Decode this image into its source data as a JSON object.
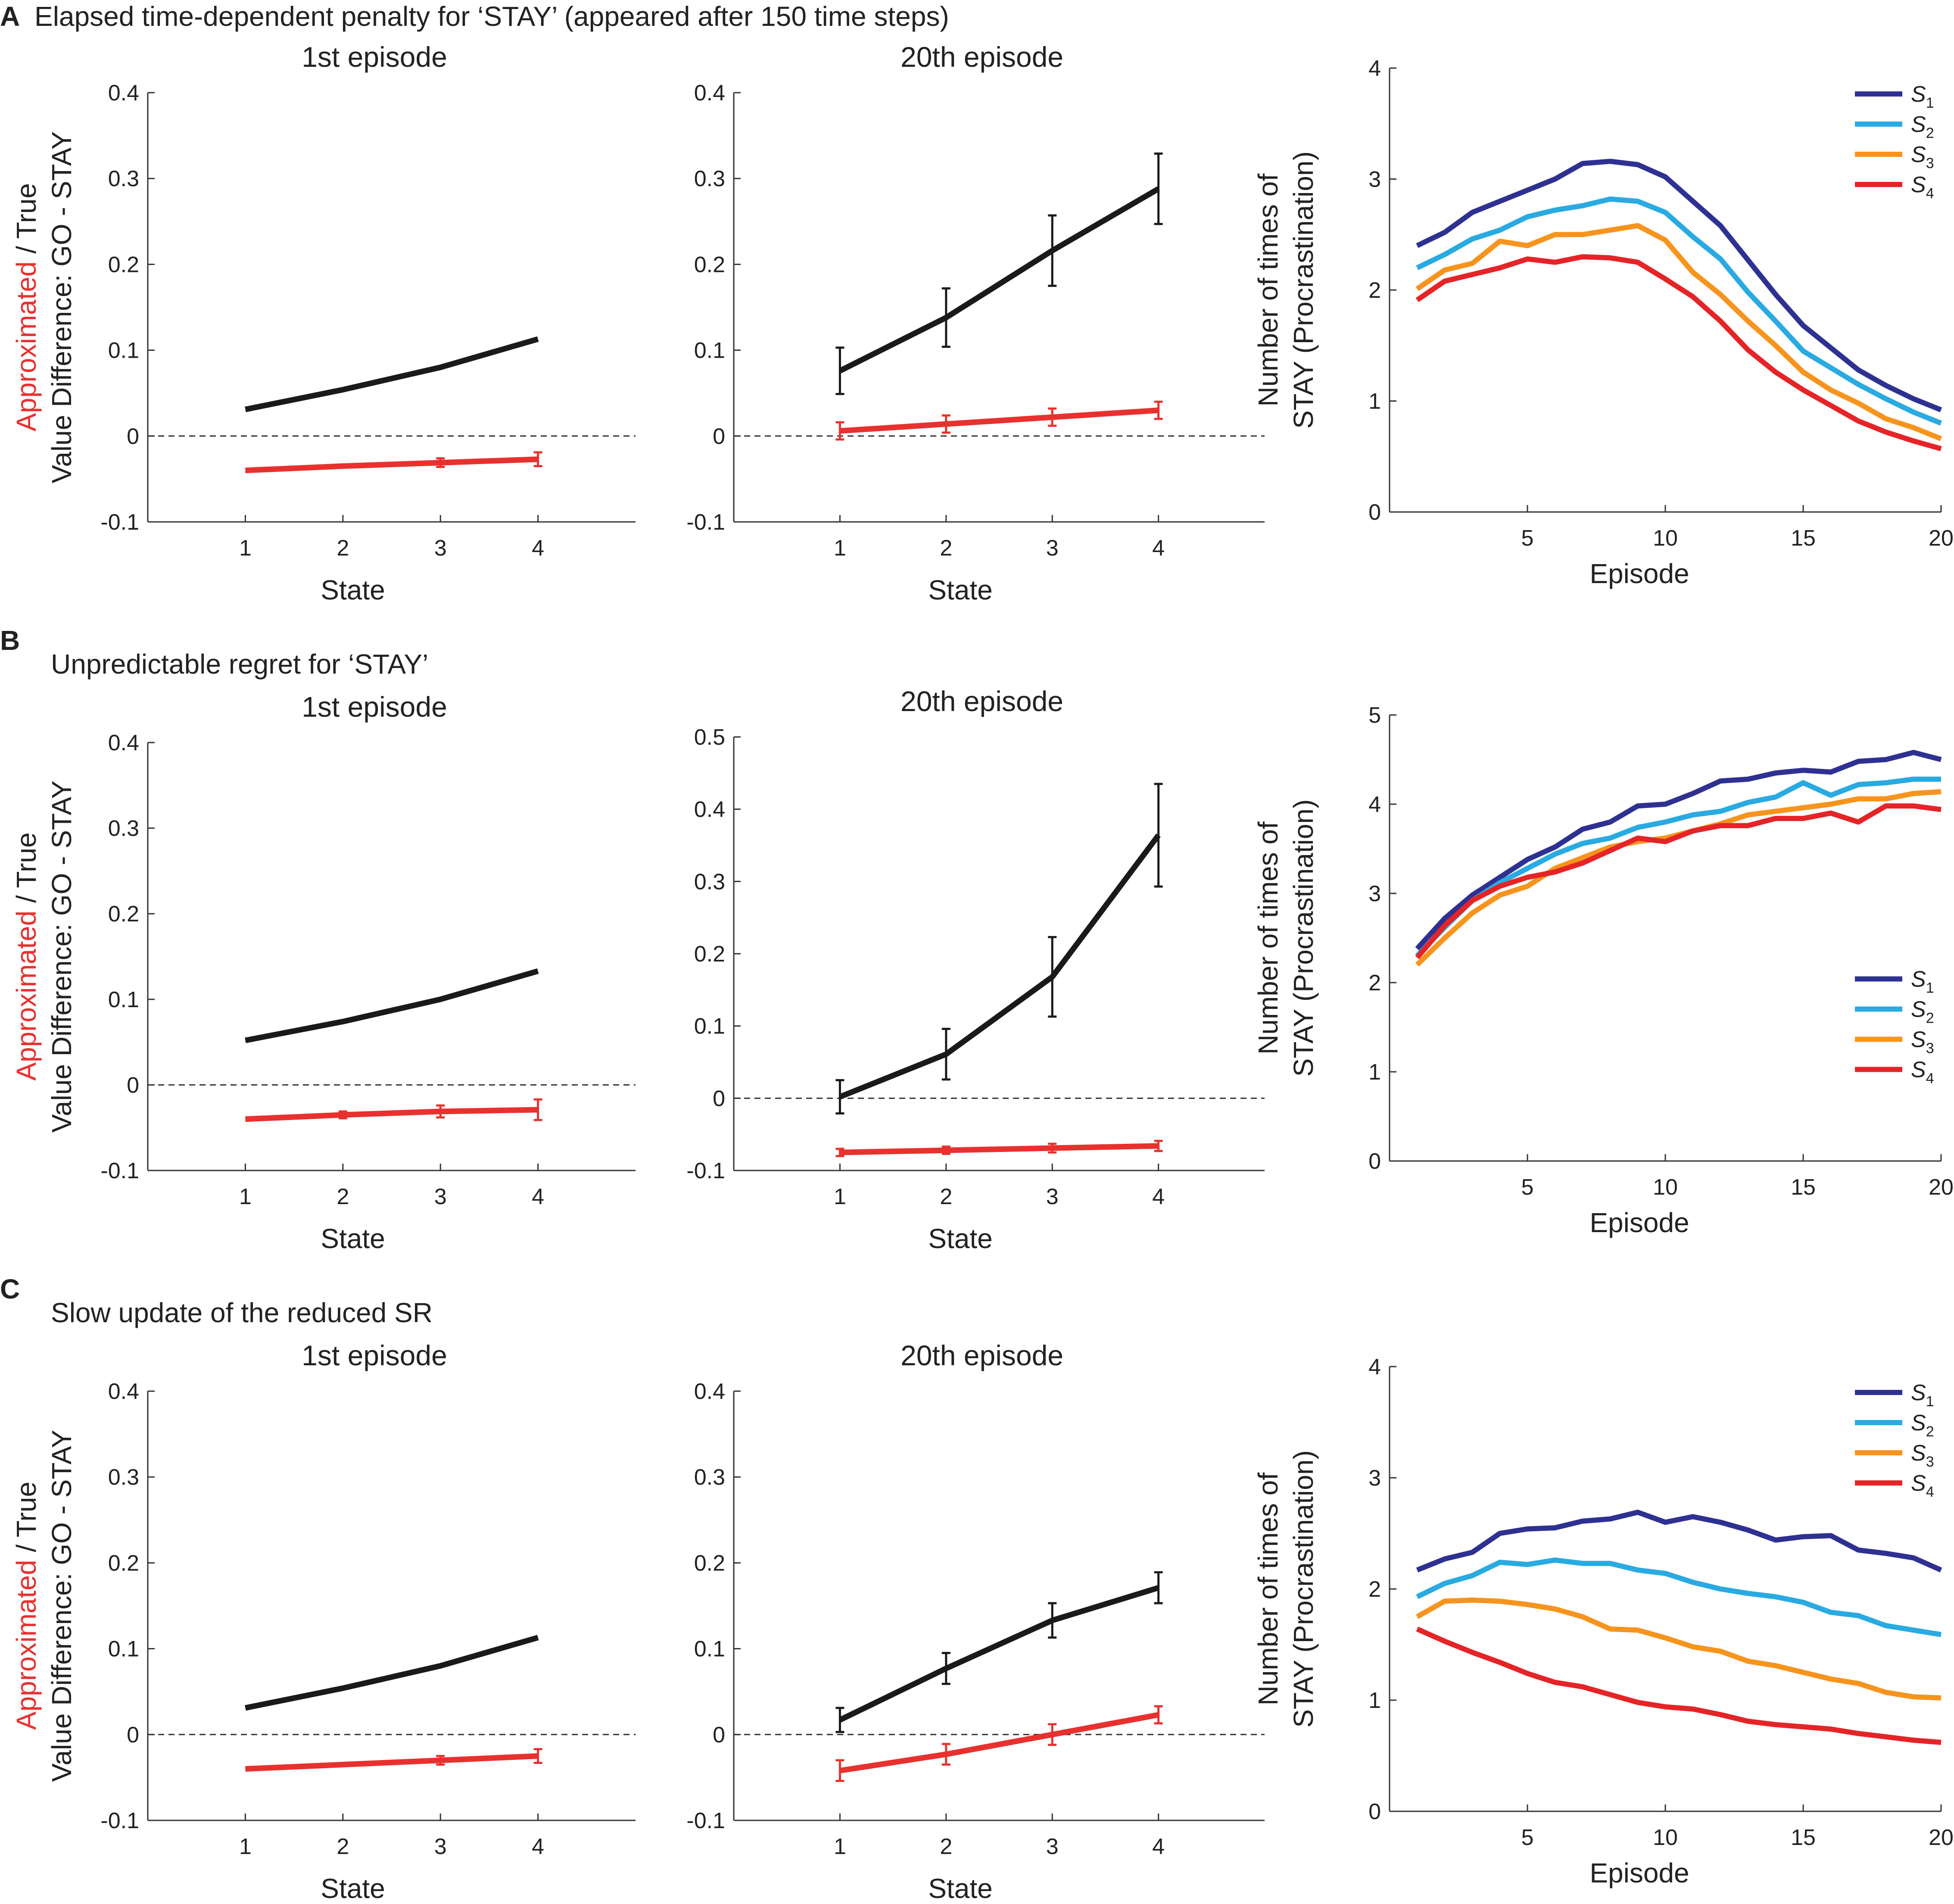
{
  "figure": {
    "panels": [
      {
        "letter": "A",
        "title": "Elapsed time-dependent penalty for ‘STAY’ (appeared after 150 time steps)"
      },
      {
        "letter": "B",
        "title": "Unpredictable regret for ‘STAY’"
      },
      {
        "letter": "C",
        "title": "Slow update of the reduced SR"
      }
    ],
    "value_ylabel": {
      "approx": "Approximated",
      "slash_true": " / True",
      "line2": "Value Difference: GO - STAY"
    },
    "count_ylabel": {
      "line1": "Number of times of",
      "line2": "STAY (Procrastination)"
    }
  },
  "colors": {
    "true_line": "#1a1a1a",
    "approx_line": "#e8312f",
    "S1": "#2e3192",
    "S2": "#29aae1",
    "S3": "#f7941d",
    "S4": "#e52427",
    "axis": "#333333"
  },
  "chart_data": [
    {
      "id": "A-1st",
      "type": "line",
      "title": "1st episode",
      "xlabel": "State",
      "ylabel": "Approximated / True Value Difference: GO - STAY",
      "xlim": [
        0,
        5
      ],
      "ylim": [
        -0.1,
        0.4
      ],
      "xticks": [
        1,
        2,
        3,
        4
      ],
      "yticks": [
        -0.1,
        0,
        0.1,
        0.2,
        0.3,
        0.4
      ],
      "ytick_labels": [
        "-0.1",
        "0",
        "0.1",
        "0.2",
        "0.3",
        "0.4"
      ],
      "zero_line": true,
      "x": [
        1,
        2,
        3,
        4
      ],
      "series": [
        {
          "name": "True",
          "color": "#1a1a1a",
          "values": [
            0.031,
            0.054,
            0.08,
            0.113
          ],
          "err": [
            0,
            0,
            0,
            0
          ]
        },
        {
          "name": "Approximated",
          "color": "#e8312f",
          "values": [
            -0.04,
            -0.035,
            -0.031,
            -0.027
          ],
          "err": [
            0,
            0,
            0.005,
            0.008
          ]
        }
      ]
    },
    {
      "id": "A-20th",
      "type": "line",
      "title": "20th episode",
      "xlabel": "State",
      "ylabel": "",
      "xlim": [
        0,
        5
      ],
      "ylim": [
        -0.1,
        0.4
      ],
      "xticks": [
        1,
        2,
        3,
        4
      ],
      "yticks": [
        -0.1,
        0,
        0.1,
        0.2,
        0.3,
        0.4
      ],
      "ytick_labels": [
        "-0.1",
        "0",
        "0.1",
        "0.2",
        "0.3",
        "0.4"
      ],
      "zero_line": true,
      "x": [
        1,
        2,
        3,
        4
      ],
      "series": [
        {
          "name": "True",
          "color": "#1a1a1a",
          "values": [
            0.076,
            0.138,
            0.216,
            0.288
          ],
          "err": [
            0.027,
            0.034,
            0.041,
            0.041
          ]
        },
        {
          "name": "Approximated",
          "color": "#e8312f",
          "values": [
            0.006,
            0.014,
            0.022,
            0.03
          ],
          "err": [
            0.01,
            0.01,
            0.01,
            0.01
          ]
        }
      ]
    },
    {
      "id": "A-count",
      "type": "line",
      "title": "",
      "xlabel": "Episode",
      "ylabel": "Number of times of STAY (Procrastination)",
      "xlim": [
        0,
        20
      ],
      "ylim": [
        0,
        4
      ],
      "xticks": [
        5,
        10,
        15,
        20
      ],
      "yticks": [
        0,
        1,
        2,
        3,
        4
      ],
      "ytick_labels": [
        "0",
        "1",
        "2",
        "3",
        "4"
      ],
      "legend": "top-right",
      "x": [
        1,
        2,
        3,
        4,
        5,
        6,
        7,
        8,
        9,
        10,
        11,
        12,
        13,
        14,
        15,
        16,
        17,
        18,
        19,
        20
      ],
      "series": [
        {
          "name": "S",
          "sub": "1",
          "color": "#2e3192",
          "values": [
            2.4,
            2.52,
            2.7,
            2.8,
            2.9,
            3.0,
            3.14,
            3.16,
            3.13,
            3.02,
            2.8,
            2.58,
            2.27,
            1.96,
            1.68,
            1.48,
            1.28,
            1.14,
            1.02,
            0.92
          ]
        },
        {
          "name": "S",
          "sub": "2",
          "color": "#29aae1",
          "values": [
            2.2,
            2.32,
            2.46,
            2.54,
            2.66,
            2.72,
            2.76,
            2.82,
            2.8,
            2.7,
            2.48,
            2.28,
            1.98,
            1.72,
            1.45,
            1.3,
            1.15,
            1.02,
            0.9,
            0.8
          ]
        },
        {
          "name": "S",
          "sub": "3",
          "color": "#f7941d",
          "values": [
            2.01,
            2.18,
            2.24,
            2.44,
            2.4,
            2.5,
            2.5,
            2.54,
            2.58,
            2.45,
            2.16,
            1.96,
            1.72,
            1.5,
            1.26,
            1.1,
            0.98,
            0.84,
            0.76,
            0.66
          ]
        },
        {
          "name": "S",
          "sub": "4",
          "color": "#e52427",
          "values": [
            1.91,
            2.08,
            2.14,
            2.2,
            2.28,
            2.25,
            2.3,
            2.29,
            2.25,
            2.1,
            1.94,
            1.72,
            1.46,
            1.26,
            1.1,
            0.96,
            0.82,
            0.72,
            0.64,
            0.57
          ]
        }
      ]
    },
    {
      "id": "B-1st",
      "type": "line",
      "title": "1st episode",
      "xlabel": "State",
      "ylabel": "Approximated / True Value Difference: GO - STAY",
      "xlim": [
        0,
        5
      ],
      "ylim": [
        -0.1,
        0.4
      ],
      "xticks": [
        1,
        2,
        3,
        4
      ],
      "yticks": [
        -0.1,
        0,
        0.1,
        0.2,
        0.3,
        0.4
      ],
      "ytick_labels": [
        "-0.1",
        "0",
        "0.1",
        "0.2",
        "0.3",
        "0.4"
      ],
      "zero_line": true,
      "x": [
        1,
        2,
        3,
        4
      ],
      "series": [
        {
          "name": "True",
          "color": "#1a1a1a",
          "values": [
            0.052,
            0.074,
            0.1,
            0.133
          ],
          "err": [
            0,
            0,
            0,
            0
          ]
        },
        {
          "name": "Approximated",
          "color": "#e8312f",
          "values": [
            -0.04,
            -0.035,
            -0.031,
            -0.029
          ],
          "err": [
            0,
            0.004,
            0.007,
            0.012
          ]
        }
      ]
    },
    {
      "id": "B-20th",
      "type": "line",
      "title": "20th episode",
      "xlabel": "State",
      "ylabel": "",
      "xlim": [
        0,
        5
      ],
      "ylim": [
        -0.1,
        0.5
      ],
      "xticks": [
        1,
        2,
        3,
        4
      ],
      "yticks": [
        -0.1,
        0,
        0.1,
        0.2,
        0.3,
        0.4,
        0.5
      ],
      "ytick_labels": [
        "-0.1",
        "0",
        "0.1",
        "0.2",
        "0.3",
        "0.4",
        "0.5"
      ],
      "zero_line": true,
      "x": [
        1,
        2,
        3,
        4
      ],
      "series": [
        {
          "name": "True",
          "color": "#1a1a1a",
          "values": [
            0.002,
            0.061,
            0.168,
            0.364
          ],
          "err": [
            0.023,
            0.035,
            0.055,
            0.071
          ]
        },
        {
          "name": "Approximated",
          "color": "#e8312f",
          "values": [
            -0.075,
            -0.072,
            -0.069,
            -0.066
          ],
          "err": [
            0.005,
            0.005,
            0.006,
            0.007
          ]
        }
      ]
    },
    {
      "id": "B-count",
      "type": "line",
      "title": "",
      "xlabel": "Episode",
      "ylabel": "Number of times of STAY (Procrastination)",
      "xlim": [
        0,
        20
      ],
      "ylim": [
        0,
        5
      ],
      "xticks": [
        5,
        10,
        15,
        20
      ],
      "yticks": [
        0,
        1,
        2,
        3,
        4,
        5
      ],
      "ytick_labels": [
        "0",
        "1",
        "2",
        "3",
        "4",
        "5"
      ],
      "legend": "middle-right",
      "x": [
        1,
        2,
        3,
        4,
        5,
        6,
        7,
        8,
        9,
        10,
        11,
        12,
        13,
        14,
        15,
        16,
        17,
        18,
        19,
        20
      ],
      "series": [
        {
          "name": "S",
          "sub": "1",
          "color": "#2e3192",
          "values": [
            2.38,
            2.72,
            2.98,
            3.18,
            3.38,
            3.52,
            3.72,
            3.8,
            3.98,
            4.0,
            4.12,
            4.26,
            4.28,
            4.35,
            4.38,
            4.36,
            4.48,
            4.5,
            4.58,
            4.5
          ]
        },
        {
          "name": "S",
          "sub": "2",
          "color": "#29aae1",
          "values": [
            2.3,
            2.62,
            2.92,
            3.12,
            3.28,
            3.44,
            3.56,
            3.62,
            3.74,
            3.8,
            3.88,
            3.92,
            4.02,
            4.08,
            4.24,
            4.1,
            4.22,
            4.24,
            4.28,
            4.28
          ]
        },
        {
          "name": "S",
          "sub": "3",
          "color": "#f7941d",
          "values": [
            2.2,
            2.5,
            2.78,
            2.98,
            3.08,
            3.28,
            3.4,
            3.52,
            3.58,
            3.62,
            3.7,
            3.78,
            3.88,
            3.92,
            3.96,
            4.0,
            4.06,
            4.06,
            4.12,
            4.14
          ]
        },
        {
          "name": "S",
          "sub": "4",
          "color": "#e52427",
          "values": [
            2.28,
            2.64,
            2.92,
            3.08,
            3.18,
            3.24,
            3.34,
            3.48,
            3.62,
            3.58,
            3.7,
            3.76,
            3.76,
            3.84,
            3.84,
            3.9,
            3.8,
            3.98,
            3.98,
            3.94
          ]
        }
      ]
    },
    {
      "id": "C-1st",
      "type": "line",
      "title": "1st episode",
      "xlabel": "State",
      "ylabel": "Approximated / True Value Difference: GO - STAY",
      "xlim": [
        0,
        5
      ],
      "ylim": [
        -0.1,
        0.4
      ],
      "xticks": [
        1,
        2,
        3,
        4
      ],
      "yticks": [
        -0.1,
        0,
        0.1,
        0.2,
        0.3,
        0.4
      ],
      "ytick_labels": [
        "-0.1",
        "0",
        "0.1",
        "0.2",
        "0.3",
        "0.4"
      ],
      "zero_line": true,
      "x": [
        1,
        2,
        3,
        4
      ],
      "series": [
        {
          "name": "True",
          "color": "#1a1a1a",
          "values": [
            0.031,
            0.054,
            0.08,
            0.113
          ],
          "err": [
            0,
            0,
            0,
            0
          ]
        },
        {
          "name": "Approximated",
          "color": "#e8312f",
          "values": [
            -0.04,
            -0.035,
            -0.03,
            -0.025
          ],
          "err": [
            0,
            0,
            0.005,
            0.008
          ]
        }
      ]
    },
    {
      "id": "C-20th",
      "type": "line",
      "title": "20th episode",
      "xlabel": "State",
      "ylabel": "",
      "xlim": [
        0,
        5
      ],
      "ylim": [
        -0.1,
        0.4
      ],
      "xticks": [
        1,
        2,
        3,
        4
      ],
      "yticks": [
        -0.1,
        0,
        0.1,
        0.2,
        0.3,
        0.4
      ],
      "ytick_labels": [
        "-0.1",
        "0",
        "0.1",
        "0.2",
        "0.3",
        "0.4"
      ],
      "zero_line": true,
      "x": [
        1,
        2,
        3,
        4
      ],
      "series": [
        {
          "name": "True",
          "color": "#1a1a1a",
          "values": [
            0.017,
            0.077,
            0.133,
            0.171
          ],
          "err": [
            0.014,
            0.018,
            0.02,
            0.018
          ]
        },
        {
          "name": "Approximated",
          "color": "#e8312f",
          "values": [
            -0.042,
            -0.023,
            0.0,
            0.023
          ],
          "err": [
            0.012,
            0.012,
            0.012,
            0.01
          ]
        }
      ]
    },
    {
      "id": "C-count",
      "type": "line",
      "title": "",
      "xlabel": "Episode",
      "ylabel": "Number of times of STAY (Procrastination)",
      "xlim": [
        0,
        20
      ],
      "ylim": [
        0,
        4
      ],
      "xticks": [
        5,
        10,
        15,
        20
      ],
      "yticks": [
        0,
        1,
        2,
        3,
        4
      ],
      "ytick_labels": [
        "0",
        "1",
        "2",
        "3",
        "4"
      ],
      "legend": "top-right",
      "x": [
        1,
        2,
        3,
        4,
        5,
        6,
        7,
        8,
        9,
        10,
        11,
        12,
        13,
        14,
        15,
        16,
        17,
        18,
        19,
        20
      ],
      "series": [
        {
          "name": "S",
          "sub": "1",
          "color": "#2e3192",
          "values": [
            2.17,
            2.27,
            2.33,
            2.5,
            2.54,
            2.55,
            2.61,
            2.63,
            2.69,
            2.6,
            2.65,
            2.6,
            2.53,
            2.44,
            2.47,
            2.48,
            2.35,
            2.32,
            2.28,
            2.17
          ]
        },
        {
          "name": "S",
          "sub": "2",
          "color": "#29aae1",
          "values": [
            1.93,
            2.05,
            2.12,
            2.24,
            2.22,
            2.26,
            2.23,
            2.23,
            2.17,
            2.14,
            2.06,
            2.0,
            1.96,
            1.93,
            1.88,
            1.79,
            1.76,
            1.67,
            1.63,
            1.59
          ]
        },
        {
          "name": "S",
          "sub": "3",
          "color": "#f7941d",
          "values": [
            1.75,
            1.89,
            1.9,
            1.89,
            1.86,
            1.82,
            1.75,
            1.64,
            1.63,
            1.56,
            1.48,
            1.44,
            1.35,
            1.31,
            1.25,
            1.19,
            1.15,
            1.07,
            1.03,
            1.02
          ]
        },
        {
          "name": "S",
          "sub": "4",
          "color": "#e52427",
          "values": [
            1.64,
            1.53,
            1.43,
            1.34,
            1.24,
            1.16,
            1.12,
            1.05,
            0.98,
            0.94,
            0.92,
            0.87,
            0.81,
            0.78,
            0.76,
            0.74,
            0.7,
            0.67,
            0.64,
            0.62
          ]
        }
      ]
    }
  ]
}
